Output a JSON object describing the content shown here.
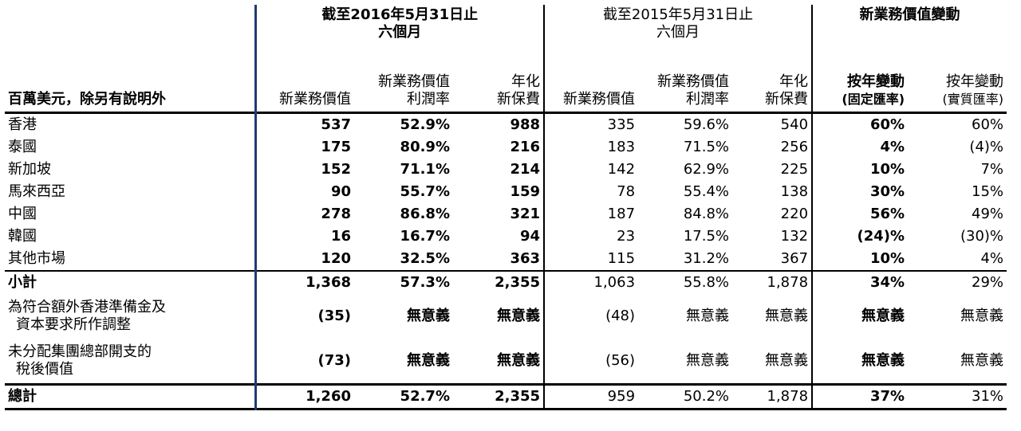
{
  "header": {
    "group1_title_line1": "截至2016年5月31日止",
    "group1_title_line2": "六個月",
    "group2_title_line1": "截至2015年5月31日止",
    "group2_title_line2": "六個月",
    "group3_title": "新業務價值變動",
    "unit_label": "百萬美元，除另有說明外",
    "col_nbv": "新業務價值",
    "col_margin_line1": "新業務價值",
    "col_margin_line2": "利潤率",
    "col_ape_line1": "年化",
    "col_ape_line2": "新保費",
    "col_yoy_const_line1": "按年變動",
    "col_yoy_const_line2": "(固定匯率)",
    "col_yoy_actual_line1": "按年變動",
    "col_yoy_actual_line2": "(實質匯率)"
  },
  "rows": [
    {
      "name": "香港",
      "nbv16": "537",
      "m16": "52.9%",
      "ape16": "988",
      "nbv15": "335",
      "m15": "59.6%",
      "ape15": "540",
      "yc": "60%",
      "ya": "60%"
    },
    {
      "name": "泰國",
      "nbv16": "175",
      "m16": "80.9%",
      "ape16": "216",
      "nbv15": "183",
      "m15": "71.5%",
      "ape15": "256",
      "yc": "4%",
      "ya": "(4)%"
    },
    {
      "name": "新加坡",
      "nbv16": "152",
      "m16": "71.1%",
      "ape16": "214",
      "nbv15": "142",
      "m15": "62.9%",
      "ape15": "225",
      "yc": "10%",
      "ya": "7%"
    },
    {
      "name": "馬來西亞",
      "nbv16": "90",
      "m16": "55.7%",
      "ape16": "159",
      "nbv15": "78",
      "m15": "55.4%",
      "ape15": "138",
      "yc": "30%",
      "ya": "15%"
    },
    {
      "name": "中國",
      "nbv16": "278",
      "m16": "86.8%",
      "ape16": "321",
      "nbv15": "187",
      "m15": "84.8%",
      "ape15": "220",
      "yc": "56%",
      "ya": "49%"
    },
    {
      "name": "韓國",
      "nbv16": "16",
      "m16": "16.7%",
      "ape16": "94",
      "nbv15": "23",
      "m15": "17.5%",
      "ape15": "132",
      "yc": "(24)%",
      "ya": "(30)%"
    },
    {
      "name": "其他市場",
      "nbv16": "120",
      "m16": "32.5%",
      "ape16": "363",
      "nbv15": "115",
      "m15": "31.2%",
      "ape15": "367",
      "yc": "10%",
      "ya": "4%"
    }
  ],
  "subtotal": {
    "name": "小計",
    "nbv16": "1,368",
    "m16": "57.3%",
    "ape16": "2,355",
    "nbv15": "1,063",
    "m15": "55.8%",
    "ape15": "1,878",
    "yc": "34%",
    "ya": "29%"
  },
  "adj1": {
    "name_line1": "為符合額外香港準備金及",
    "name_line2": "資本要求所作調整",
    "nbv16": "(35)",
    "m16": "無意義",
    "ape16": "無意義",
    "nbv15": "(48)",
    "m15": "無意義",
    "ape15": "無意義",
    "yc": "無意義",
    "ya": "無意義"
  },
  "adj2": {
    "name_line1": "未分配集團總部開支的",
    "name_line2": "稅後價值",
    "nbv16": "(73)",
    "m16": "無意義",
    "ape16": "無意義",
    "nbv15": "(56)",
    "m15": "無意義",
    "ape15": "無意義",
    "yc": "無意義",
    "ya": "無意義"
  },
  "total": {
    "name": "總計",
    "nbv16": "1,260",
    "m16": "52.7%",
    "ape16": "2,355",
    "nbv15": "959",
    "m15": "50.2%",
    "ape15": "1,878",
    "yc": "37%",
    "ya": "31%"
  }
}
